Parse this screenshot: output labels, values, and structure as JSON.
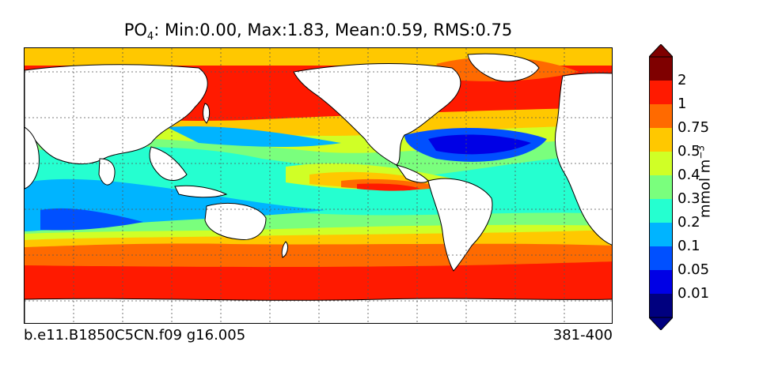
{
  "title": {
    "variable": "PO",
    "variable_subscript": "4",
    "stats": ": Min:0.00, Max:1.83, Mean:0.59, RMS:0.75"
  },
  "footer": {
    "case_name": "b.e11.B1850C5CN.f09 g16.005",
    "years": "381-400"
  },
  "colorbar": {
    "units_base": "mmol m",
    "units_exponent": "−3",
    "levels": [
      "0.01",
      "0.05",
      "0.1",
      "0.2",
      "0.3",
      "0.4",
      "0.5",
      "0.75",
      "1",
      "2"
    ],
    "colors": [
      "#00007f",
      "#0000e5",
      "#0050ff",
      "#00b4ff",
      "#25ffd0",
      "#7aff7d",
      "#d0ff26",
      "#ffc800",
      "#ff6a00",
      "#ff1a00",
      "#7f0000"
    ],
    "extend_min_color": "#000000",
    "extend_max_color": "#000000"
  },
  "map": {
    "land_color": "#ffffff",
    "grid": true,
    "grid_style": "dotted"
  }
}
